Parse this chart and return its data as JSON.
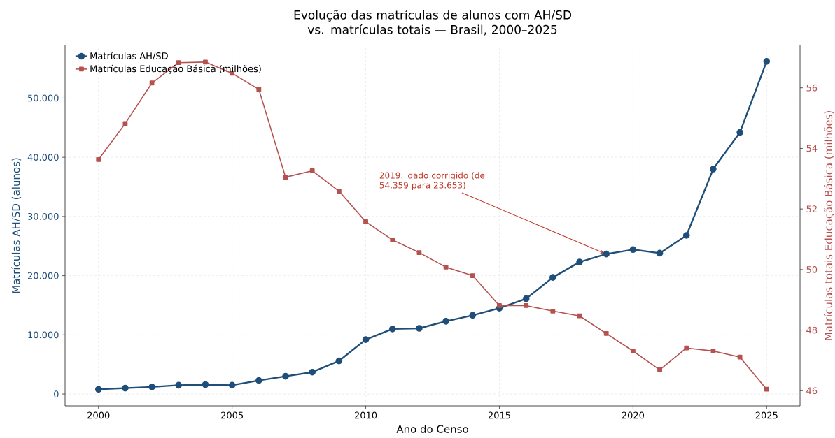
{
  "chart_data": {
    "type": "line",
    "title": "Evolução das matrículas de alunos com AH/SD vs. matrículas totais — Brasil, 2000–2025",
    "xlabel": "Ano do Censo",
    "ylabel": "Matrículas AH/SD (alunos)",
    "y2label": "Matrículas totais Educação Básica (milhões)",
    "x": [
      2000,
      2001,
      2002,
      2003,
      2004,
      2005,
      2006,
      2007,
      2008,
      2009,
      2010,
      2011,
      2012,
      2013,
      2014,
      2015,
      2016,
      2017,
      2018,
      2019,
      2020,
      2021,
      2022,
      2023,
      2024,
      2025
    ],
    "series": [
      {
        "name": "Matrículas AH/SD",
        "color": "#1f4e79",
        "marker": "circle",
        "values": [
          800,
          1000,
          1200,
          1500,
          1600,
          1500,
          2300,
          3000,
          3700,
          5600,
          9200,
          11000,
          11100,
          12300,
          13300,
          14500,
          16100,
          19700,
          22300,
          23653,
          24400,
          23800,
          26800,
          38000,
          44200,
          56200
        ]
      },
      {
        "name": "Matrículas Educação Básica (milhões)",
        "color": "#b5524f",
        "marker": "square",
        "axis": "y2",
        "values": [
          53.63,
          54.82,
          56.16,
          56.83,
          56.85,
          56.48,
          55.95,
          53.05,
          53.26,
          52.59,
          51.58,
          50.98,
          50.56,
          50.08,
          49.8,
          48.81,
          48.81,
          48.63,
          48.47,
          47.89,
          47.31,
          46.69,
          47.41,
          47.31,
          47.11,
          46.05
        ]
      }
    ],
    "xlim": [
      1998.75,
      2026.25
    ],
    "xticks": [
      2000,
      2005,
      2010,
      2015,
      2020,
      2025
    ],
    "ylim": [
      -2000,
      58900
    ],
    "yticks": [
      0,
      {
        "value": 10000,
        "label": "10.000"
      },
      {
        "value": 20000,
        "label": "20.000"
      },
      {
        "value": 30000,
        "label": "30.000"
      },
      {
        "value": 40000,
        "label": "40.000"
      },
      {
        "value": 50000,
        "label": "50.000"
      }
    ],
    "y2lim": [
      45.5,
      57.4
    ],
    "y2ticks": [
      46,
      48,
      50,
      52,
      54,
      56
    ],
    "grid": true,
    "legend": "top left",
    "annotations": [
      {
        "text": "2019: dado corrigido (de 54.359 para 23.653)",
        "x": 2019,
        "y": 23653
      }
    ]
  }
}
